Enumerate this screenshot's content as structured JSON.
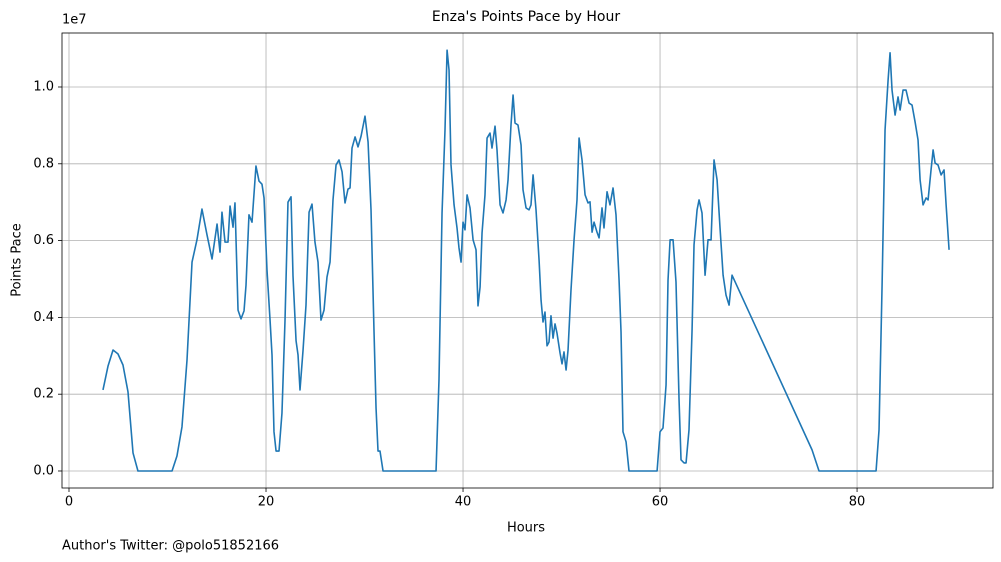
{
  "chart_data": {
    "type": "line",
    "title": "Enza's Points Pace by Hour",
    "xlabel": "Hours",
    "ylabel": "Points Pace",
    "y_offset_label": "1e7",
    "footnote": "Author's Twitter: @polo51852166",
    "x": [
      3.45,
      3.96,
      4.47,
      4.97,
      5.48,
      5.99,
      6.5,
      7.0,
      10.46,
      10.96,
      11.47,
      11.98,
      12.49,
      12.99,
      13.5,
      14.01,
      14.52,
      15.03,
      15.33,
      15.53,
      15.84,
      16.14,
      16.35,
      16.65,
      16.85,
      17.16,
      17.46,
      17.77,
      17.97,
      18.27,
      18.58,
      18.98,
      19.29,
      19.59,
      19.8,
      20.1,
      20.41,
      20.61,
      20.81,
      21.02,
      21.32,
      21.62,
      21.93,
      22.23,
      22.54,
      22.74,
      23.05,
      23.25,
      23.45,
      23.76,
      24.06,
      24.37,
      24.67,
      24.97,
      25.28,
      25.58,
      25.89,
      26.19,
      26.5,
      26.8,
      27.11,
      27.41,
      27.72,
      28.02,
      28.32,
      28.53,
      28.73,
      29.04,
      29.34,
      29.65,
      30.05,
      30.36,
      30.66,
      30.96,
      31.17,
      31.37,
      31.57,
      31.88,
      37.26,
      37.56,
      37.87,
      38.17,
      38.38,
      38.58,
      38.78,
      39.09,
      39.39,
      39.59,
      39.8,
      40.0,
      40.2,
      40.41,
      40.71,
      41.02,
      41.32,
      41.52,
      41.73,
      41.93,
      42.23,
      42.44,
      42.74,
      42.94,
      43.25,
      43.45,
      43.76,
      44.06,
      44.37,
      44.57,
      44.87,
      45.08,
      45.28,
      45.58,
      45.89,
      46.09,
      46.4,
      46.7,
      46.9,
      47.11,
      47.41,
      47.72,
      47.92,
      48.12,
      48.32,
      48.53,
      48.73,
      48.93,
      49.14,
      49.34,
      49.54,
      49.85,
      50.05,
      50.25,
      50.46,
      50.66,
      50.96,
      51.27,
      51.57,
      51.78,
      52.08,
      52.39,
      52.69,
      52.89,
      53.1,
      53.3,
      53.6,
      53.81,
      54.11,
      54.31,
      54.62,
      54.92,
      55.23,
      55.53,
      55.84,
      56.04,
      56.24,
      56.55,
      56.85,
      59.7,
      60.0,
      60.3,
      60.61,
      60.81,
      61.02,
      61.32,
      61.62,
      61.93,
      62.13,
      62.44,
      62.64,
      62.94,
      63.25,
      63.45,
      63.76,
      63.96,
      64.26,
      64.57,
      64.87,
      65.18,
      65.48,
      65.79,
      66.09,
      66.4,
      66.7,
      67.01,
      67.31,
      75.43,
      76.14,
      81.93,
      82.23,
      82.54,
      82.84,
      83.15,
      83.35,
      83.55,
      83.86,
      84.16,
      84.37,
      84.67,
      84.97,
      85.28,
      85.58,
      85.89,
      86.19,
      86.4,
      86.7,
      87.01,
      87.21,
      87.51,
      87.72,
      87.92,
      88.22,
      88.53,
      88.83,
      89.04,
      89.34
    ],
    "series": [
      {
        "color": "#1f77b4",
        "values": [
          2110000,
          2730000,
          3150000,
          3050000,
          2760000,
          2060000,
          470000,
          0,
          0,
          390000,
          1150000,
          2890000,
          5440000,
          6020000,
          6820000,
          6150000,
          5520000,
          6430000,
          5700000,
          6740000,
          5960000,
          5960000,
          6900000,
          6350000,
          6980000,
          4190000,
          3960000,
          4170000,
          4840000,
          6670000,
          6480000,
          7940000,
          7550000,
          7470000,
          7110000,
          5230000,
          3930000,
          3020000,
          1020000,
          520000,
          520000,
          1510000,
          3930000,
          7000000,
          7140000,
          5080000,
          3390000,
          3020000,
          2110000,
          3150000,
          4320000,
          6740000,
          6950000,
          5960000,
          5440000,
          3930000,
          4190000,
          5050000,
          5440000,
          7060000,
          7970000,
          8100000,
          7790000,
          6980000,
          7340000,
          7370000,
          8410000,
          8700000,
          8440000,
          8720000,
          9240000,
          8570000,
          6800000,
          3670000,
          1640000,
          520000,
          520000,
          0,
          0,
          2370000,
          6720000,
          8880000,
          10960000,
          10440000,
          7970000,
          6930000,
          6330000,
          5810000,
          5440000,
          6480000,
          6280000,
          7190000,
          6850000,
          6020000,
          5760000,
          4300000,
          4790000,
          6200000,
          7190000,
          8670000,
          8800000,
          8410000,
          8980000,
          8360000,
          6930000,
          6720000,
          7060000,
          7580000,
          9010000,
          9790000,
          9060000,
          9010000,
          8490000,
          7320000,
          6850000,
          6800000,
          6930000,
          7710000,
          6800000,
          5490000,
          4450000,
          3880000,
          4140000,
          3260000,
          3360000,
          4040000,
          3460000,
          3830000,
          3590000,
          3070000,
          2790000,
          3100000,
          2630000,
          3150000,
          4710000,
          6020000,
          7060000,
          8670000,
          8100000,
          7190000,
          6980000,
          7010000,
          6220000,
          6480000,
          6220000,
          6070000,
          6850000,
          6330000,
          7270000,
          6930000,
          7370000,
          6670000,
          4970000,
          3620000,
          1020000,
          760000,
          0,
          0,
          1020000,
          1120000,
          2240000,
          4970000,
          6020000,
          6020000,
          4920000,
          1850000,
          290000,
          210000,
          210000,
          1070000,
          3670000,
          5890000,
          6800000,
          7060000,
          6720000,
          5100000,
          6020000,
          6020000,
          8100000,
          7580000,
          6330000,
          5100000,
          4580000,
          4320000,
          5100000,
          550000,
          0,
          0,
          1070000,
          4840000,
          8880000,
          10180000,
          10890000,
          9920000,
          9270000,
          9740000,
          9400000,
          9920000,
          9920000,
          9580000,
          9530000,
          9090000,
          8620000,
          7580000,
          6930000,
          7110000,
          7060000,
          7840000,
          8360000,
          8020000,
          7970000,
          7710000,
          7840000,
          6930000,
          5760000
        ]
      }
    ],
    "xlim": [
      -0.71,
      93.8
    ],
    "ylim": [
      -443000,
      11406000
    ],
    "xticks": [
      0,
      20,
      40,
      60,
      80
    ],
    "yticks": [
      {
        "value": 0,
        "label": "0.0"
      },
      {
        "value": 2000000,
        "label": "0.2"
      },
      {
        "value": 4000000,
        "label": "0.4"
      },
      {
        "value": 6000000,
        "label": "0.6"
      },
      {
        "value": 8000000,
        "label": "0.8"
      },
      {
        "value": 10000000,
        "label": "1.0"
      }
    ],
    "grid": true
  }
}
